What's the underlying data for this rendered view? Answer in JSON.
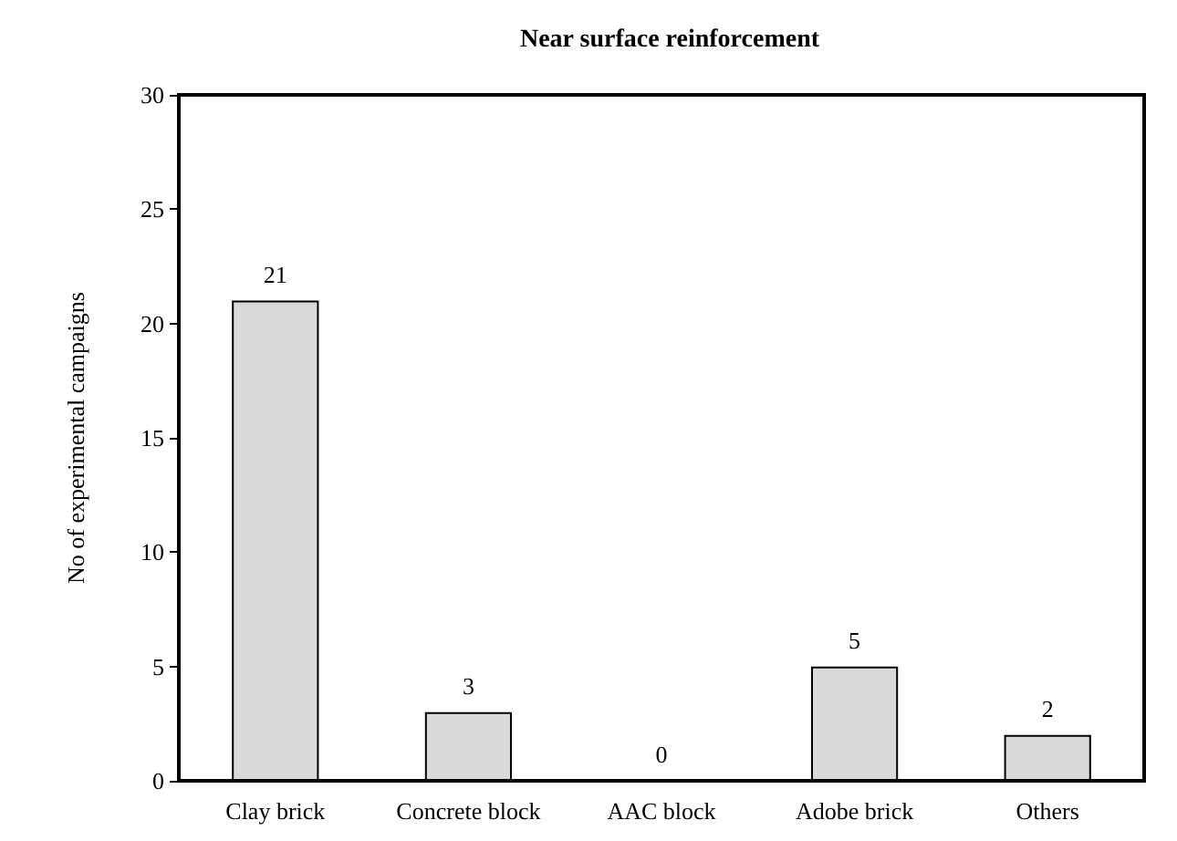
{
  "chart_data": {
    "type": "bar",
    "title": "Near surface reinforcement",
    "ylabel": "No of experimental campaigns",
    "categories": [
      "Clay brick",
      "Concrete block",
      "AAC block",
      "Adobe brick",
      "Others"
    ],
    "values": [
      21,
      3,
      0,
      5,
      2
    ],
    "color": "#d9d9d9",
    "ylim": [
      0,
      30
    ],
    "yticks": [
      0,
      5,
      10,
      15,
      20,
      25,
      30
    ],
    "grid": false,
    "data_labels": true
  }
}
